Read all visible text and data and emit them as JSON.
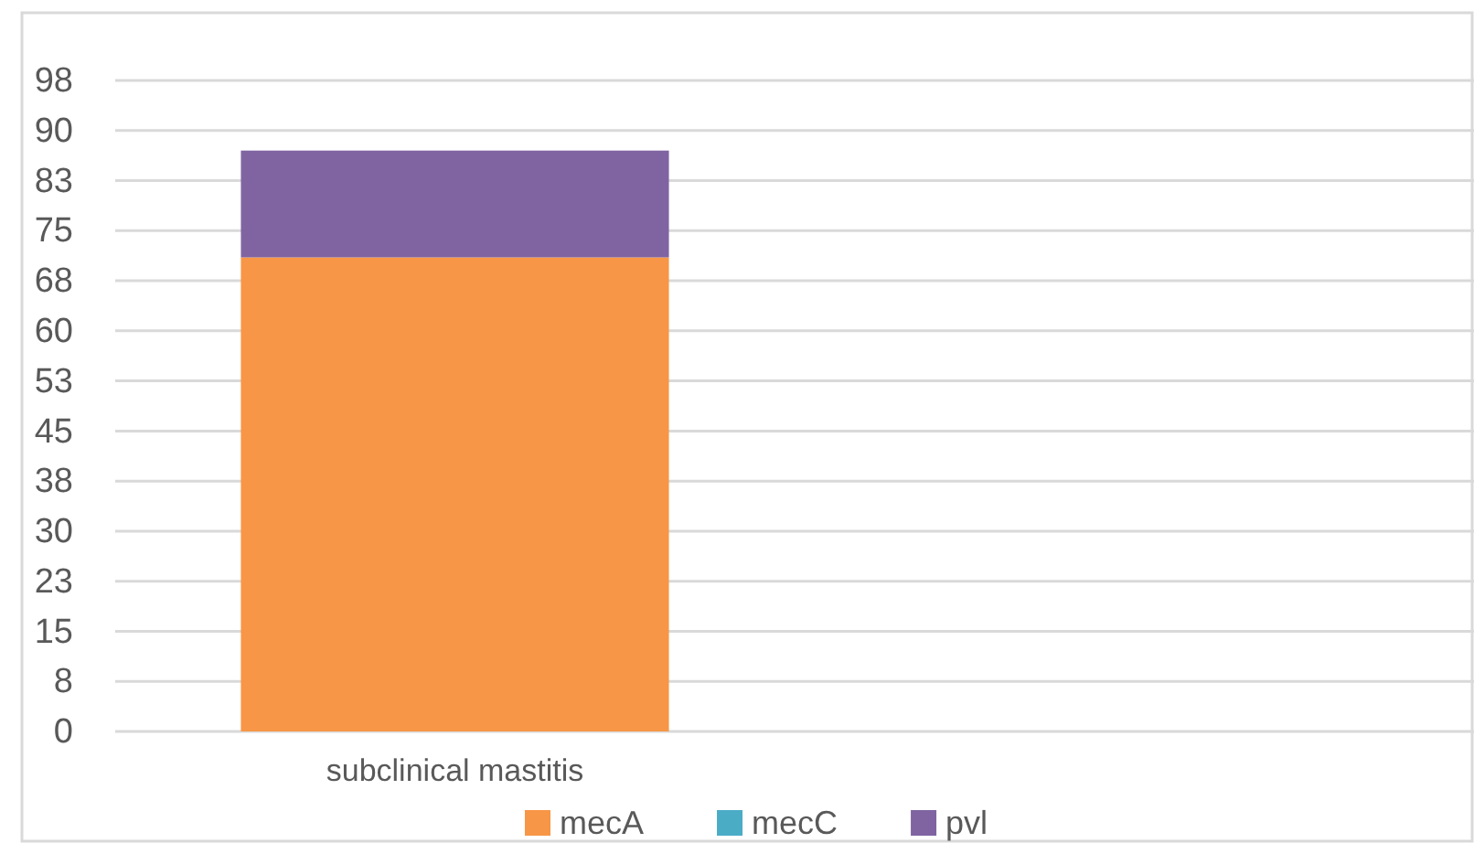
{
  "chart_data": {
    "type": "bar",
    "stacked": true,
    "categories": [
      "subclinical mastitis",
      null
    ],
    "series": [
      {
        "name": "mecA",
        "color": "#f79646",
        "values": [
          71,
          null
        ]
      },
      {
        "name": "mecC",
        "color": "#4bacc6",
        "values": [
          0,
          null
        ]
      },
      {
        "name": "pvl",
        "color": "#8064a2",
        "values": [
          16,
          null
        ]
      }
    ],
    "ylim": [
      0,
      97.5
    ],
    "yticks": [
      0,
      {
        "value": 7.5,
        "label": "8"
      },
      15,
      {
        "value": 22.5,
        "label": "23"
      },
      30,
      {
        "value": 37.5,
        "label": "38"
      },
      45,
      {
        "value": 52.5,
        "label": "53"
      },
      60,
      {
        "value": 67.5,
        "label": "68"
      },
      75,
      {
        "value": 82.5,
        "label": "83"
      },
      90,
      {
        "value": 97.5,
        "label": "98"
      }
    ],
    "grid": "y",
    "legend": "bottom"
  }
}
